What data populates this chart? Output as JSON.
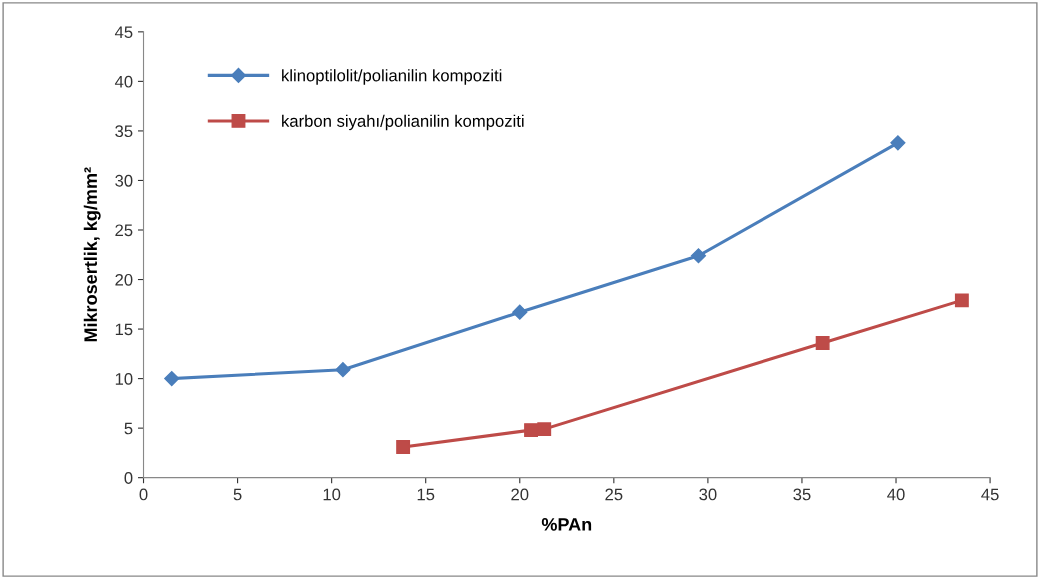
{
  "chart_data": {
    "type": "line",
    "xlabel": "%PAn",
    "ylabel": "Mikrosertlik, kg/mm²",
    "series": [
      {
        "name": "klinoptilolit/polianilin kompoziti",
        "color": "#4a7ebb",
        "marker": "diamond",
        "x": [
          1.5,
          10.6,
          20.0,
          29.5,
          40.1
        ],
        "values": [
          10.0,
          10.9,
          16.7,
          22.4,
          33.8
        ]
      },
      {
        "name": "karbon siyahı/polianilin kompoziti",
        "color": "#be4b48",
        "marker": "square",
        "x": [
          13.8,
          20.6,
          21.3,
          36.1,
          43.5
        ],
        "values": [
          3.1,
          4.8,
          4.9,
          13.6,
          17.9
        ]
      }
    ],
    "xlim": [
      0,
      45
    ],
    "xticks": [
      0,
      5,
      10,
      15,
      20,
      25,
      30,
      35,
      40,
      45
    ],
    "ylim": [
      0,
      45
    ],
    "yticks": [
      0,
      5,
      10,
      15,
      20,
      25,
      30,
      35,
      40,
      45
    ],
    "grid": false,
    "legend": "top left",
    "line_style": "solid"
  }
}
